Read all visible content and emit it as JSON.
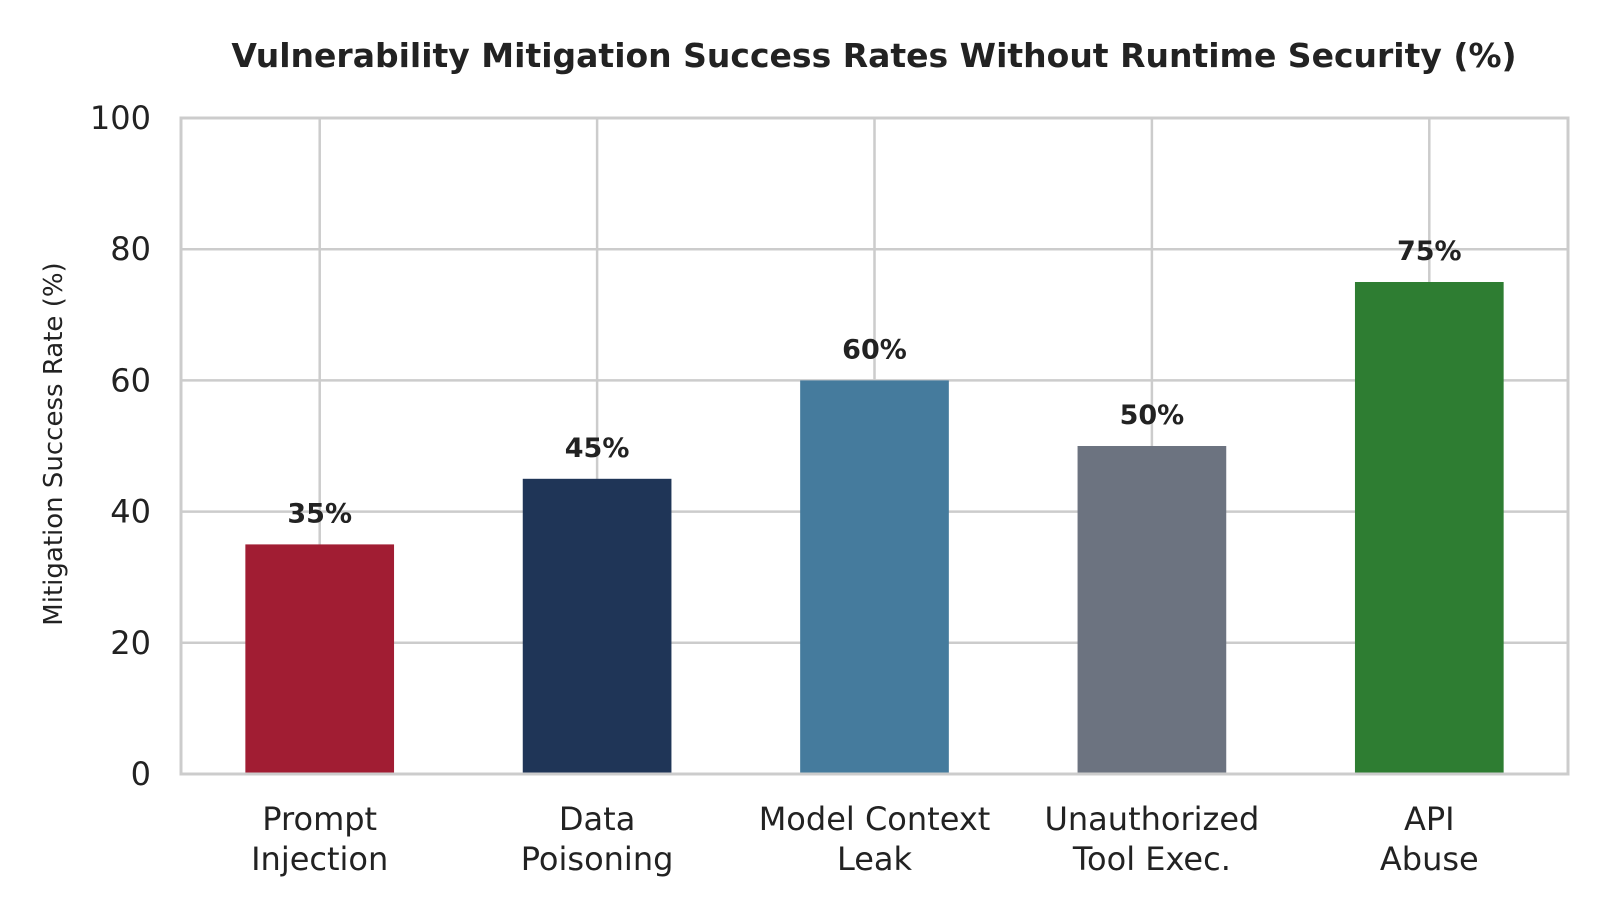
{
  "chart_data": {
    "type": "bar",
    "title": "Vulnerability Mitigation Success Rates Without Runtime Security (%)",
    "xlabel": "",
    "ylabel": "Mitigation Success Rate (%)",
    "categories": [
      [
        "Prompt",
        "Injection"
      ],
      [
        "Data",
        "Poisoning"
      ],
      [
        "Model Context",
        "Leak"
      ],
      [
        "Unauthorized",
        "Tool Exec."
      ],
      [
        "API",
        "Abuse"
      ]
    ],
    "values": [
      35,
      45,
      60,
      50,
      75
    ],
    "value_labels": [
      "35%",
      "45%",
      "60%",
      "50%",
      "75%"
    ],
    "colors": [
      "#a11d33",
      "#1f3557",
      "#457b9d",
      "#6c7380",
      "#2e7d32"
    ],
    "ylim": [
      0,
      100
    ],
    "yticks": [
      0,
      20,
      40,
      60,
      80,
      100
    ],
    "grid": true,
    "grid_color": "#cccccc",
    "axis_color": "#cccccc",
    "legend": "none"
  }
}
